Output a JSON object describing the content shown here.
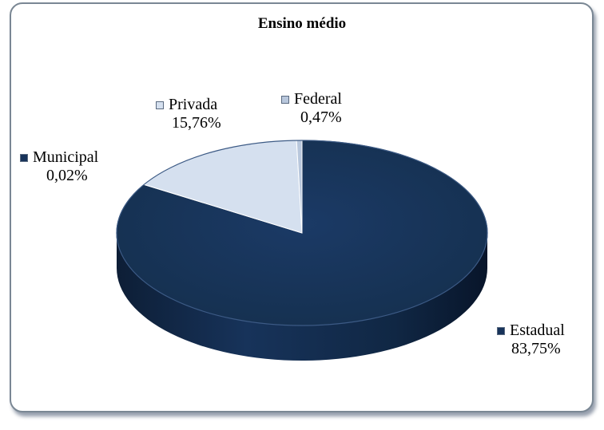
{
  "chart_data": {
    "type": "pie",
    "title": "Ensino médio",
    "categories": [
      "Estadual",
      "Municipal",
      "Privada",
      "Federal"
    ],
    "values": [
      83.75,
      0.02,
      15.76,
      0.47
    ],
    "value_labels": [
      "83,75%",
      "0,02%",
      "15,76%",
      "0,47%"
    ],
    "colors": [
      "#17335a",
      "#d5e0ef",
      "#d5e0ef",
      "#b8c7dc"
    ],
    "style": "3d",
    "legend": "none"
  },
  "labels": {
    "estadual": {
      "name": "Estadual",
      "pct": "83,75%"
    },
    "municipal": {
      "name": "Municipal",
      "pct": "0,02%"
    },
    "privada": {
      "name": "Privada",
      "pct": "15,76%"
    },
    "federal": {
      "name": "Federal",
      "pct": "0,47%"
    }
  }
}
